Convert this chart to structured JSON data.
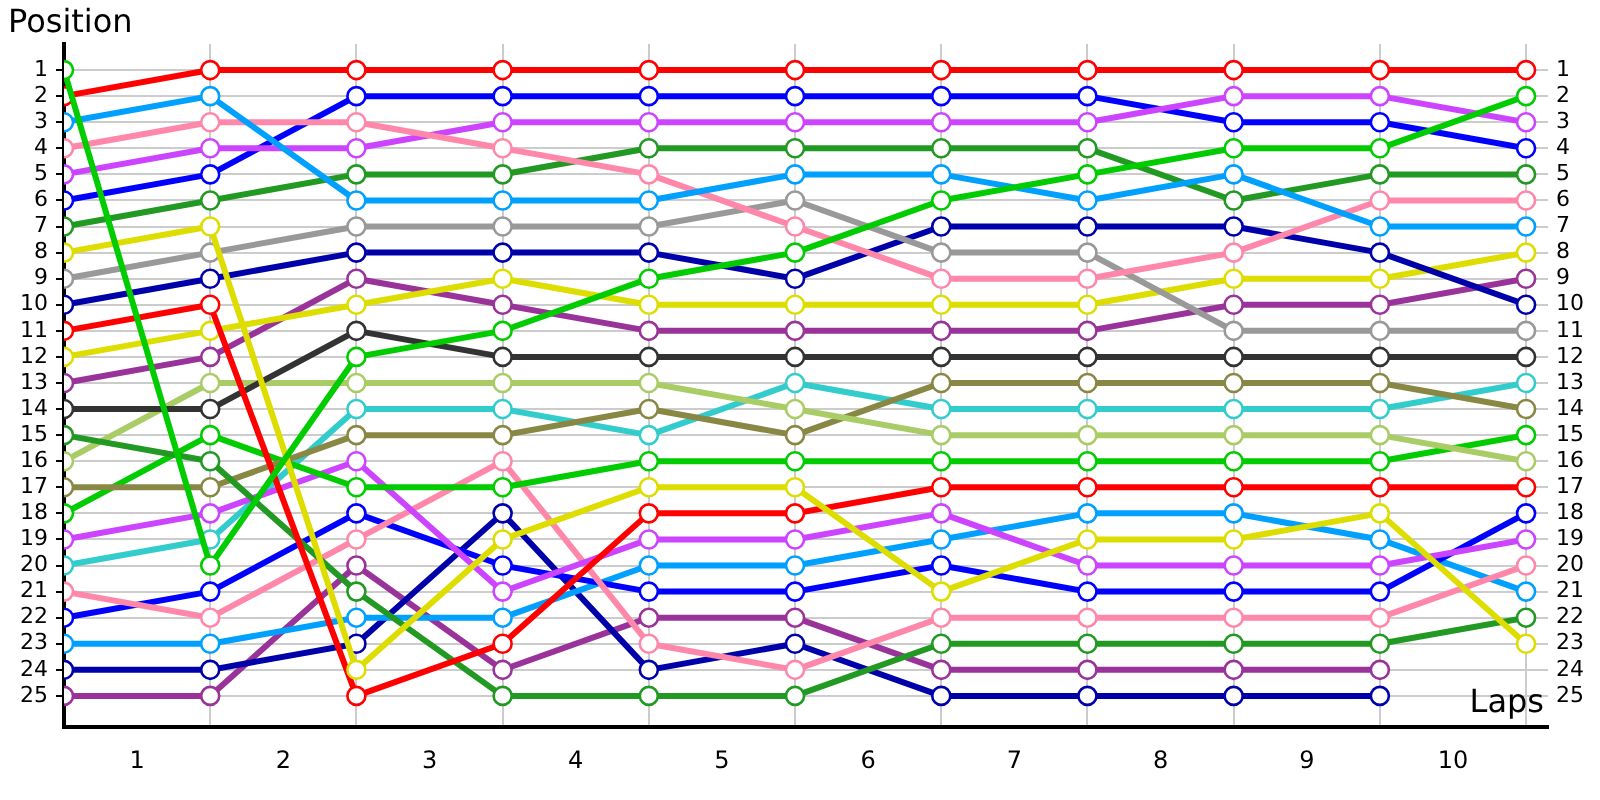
{
  "chart_data": {
    "type": "line",
    "xlabel": "Laps",
    "ylabel": "Position",
    "x": [
      0,
      1,
      2,
      3,
      4,
      5,
      6,
      7,
      8,
      9,
      10
    ],
    "xlim": [
      0,
      10.15
    ],
    "xticks": [
      {
        "value": 0,
        "label": null
      },
      {
        "value": 0.5,
        "label": "1"
      },
      {
        "value": 1,
        "label": null
      },
      {
        "value": 1.5,
        "label": "2"
      },
      {
        "value": 2,
        "label": null
      },
      {
        "value": 2.5,
        "label": "3"
      },
      {
        "value": 3,
        "label": null
      },
      {
        "value": 3.5,
        "label": "4"
      },
      {
        "value": 4,
        "label": null
      },
      {
        "value": 4.5,
        "label": "5"
      },
      {
        "value": 5,
        "label": null
      },
      {
        "value": 5.5,
        "label": "6"
      },
      {
        "value": 6,
        "label": null
      },
      {
        "value": 6.5,
        "label": "7"
      },
      {
        "value": 7,
        "label": null
      },
      {
        "value": 7.5,
        "label": "8"
      },
      {
        "value": 8,
        "label": null
      },
      {
        "value": 8.5,
        "label": "9"
      },
      {
        "value": 9,
        "label": null
      },
      {
        "value": 9.5,
        "label": "10"
      },
      {
        "value": 10,
        "label": null
      }
    ],
    "ylim": [
      26.2,
      0
    ],
    "yticks": [
      1,
      2,
      3,
      4,
      5,
      6,
      7,
      8,
      9,
      10,
      11,
      12,
      13,
      14,
      15,
      16,
      17,
      18,
      19,
      20,
      21,
      22,
      23,
      24,
      25
    ],
    "y2lim": [
      26.2,
      0
    ],
    "y2ticks": [
      1,
      2,
      3,
      4,
      5,
      6,
      7,
      8,
      9,
      10,
      11,
      12,
      13,
      14,
      15,
      16,
      17,
      18,
      19,
      20,
      21,
      22,
      23,
      24,
      25
    ],
    "grid": true,
    "legend": false,
    "marker": "circle",
    "line_style": "solid",
    "series": [
      {
        "color": "#00cc00",
        "values": [
          1,
          20,
          12,
          11,
          9,
          8,
          6,
          5,
          4,
          4,
          2
        ]
      },
      {
        "color": "#ff0000",
        "values": [
          2,
          1,
          1,
          1,
          1,
          1,
          1,
          1,
          1,
          1,
          1
        ]
      },
      {
        "color": "#00a0ff",
        "values": [
          3,
          2,
          6,
          6,
          6,
          5,
          5,
          6,
          5,
          7,
          7
        ]
      },
      {
        "color": "#ff88aa",
        "values": [
          4,
          3,
          3,
          4,
          5,
          7,
          9,
          9,
          8,
          6,
          6
        ]
      },
      {
        "color": "#cc44ff",
        "values": [
          5,
          4,
          4,
          3,
          3,
          3,
          3,
          3,
          2,
          2,
          3
        ]
      },
      {
        "color": "#0000ff",
        "values": [
          6,
          5,
          2,
          2,
          2,
          2,
          2,
          2,
          3,
          3,
          4
        ]
      },
      {
        "color": "#229922",
        "values": [
          7,
          6,
          5,
          5,
          4,
          4,
          4,
          4,
          6,
          5,
          5
        ]
      },
      {
        "color": "#dddd00",
        "values": [
          8,
          7,
          24,
          19,
          17,
          17,
          21,
          19,
          19,
          18,
          23
        ]
      },
      {
        "color": "#999999",
        "values": [
          9,
          8,
          7,
          7,
          7,
          6,
          8,
          8,
          11,
          11,
          11
        ]
      },
      {
        "color": "#0000aa",
        "values": [
          10,
          9,
          8,
          8,
          8,
          9,
          7,
          7,
          7,
          8,
          10
        ]
      },
      {
        "color": "#ff0000",
        "values": [
          11,
          10,
          25,
          23,
          18,
          18,
          17,
          17,
          17,
          17,
          17
        ]
      },
      {
        "color": "#dddd00",
        "values": [
          12,
          11,
          10,
          9,
          10,
          10,
          10,
          10,
          9,
          9,
          8
        ]
      },
      {
        "color": "#993399",
        "values": [
          13,
          12,
          9,
          10,
          11,
          11,
          11,
          11,
          10,
          10,
          9
        ]
      },
      {
        "color": "#333333",
        "values": [
          14,
          14,
          11,
          12,
          12,
          12,
          12,
          12,
          12,
          12,
          12
        ]
      },
      {
        "color": "#229922",
        "values": [
          15,
          16,
          21,
          25,
          25,
          25,
          23,
          23,
          23,
          23,
          22
        ]
      },
      {
        "color": "#aacc66",
        "values": [
          16,
          13,
          13,
          13,
          13,
          14,
          15,
          15,
          15,
          15,
          16
        ]
      },
      {
        "color": "#888844",
        "values": [
          17,
          17,
          15,
          15,
          14,
          15,
          13,
          13,
          13,
          13,
          14
        ]
      },
      {
        "color": "#00cc00",
        "values": [
          18,
          15,
          17,
          17,
          16,
          16,
          16,
          16,
          16,
          16,
          15
        ]
      },
      {
        "color": "#cc44ff",
        "values": [
          19,
          18,
          16,
          21,
          19,
          19,
          18,
          20,
          20,
          20,
          19
        ]
      },
      {
        "color": "#33cccc",
        "values": [
          20,
          19,
          14,
          14,
          15,
          13,
          14,
          14,
          14,
          14,
          13
        ]
      },
      {
        "color": "#ff88aa",
        "values": [
          21,
          22,
          19,
          16,
          23,
          24,
          22,
          22,
          22,
          22,
          20
        ]
      },
      {
        "color": "#0000ff",
        "values": [
          22,
          21,
          18,
          20,
          21,
          21,
          20,
          21,
          21,
          21,
          18
        ]
      },
      {
        "color": "#00a0ff",
        "values": [
          23,
          23,
          22,
          22,
          20,
          20,
          19,
          18,
          18,
          19,
          21
        ]
      },
      {
        "color": "#0000aa",
        "values": [
          24,
          24,
          23,
          18,
          24,
          23,
          25,
          25,
          25,
          25,
          null
        ]
      },
      {
        "color": "#993399",
        "values": [
          25,
          25,
          20,
          24,
          22,
          22,
          24,
          24,
          24,
          24,
          null
        ]
      }
    ]
  }
}
